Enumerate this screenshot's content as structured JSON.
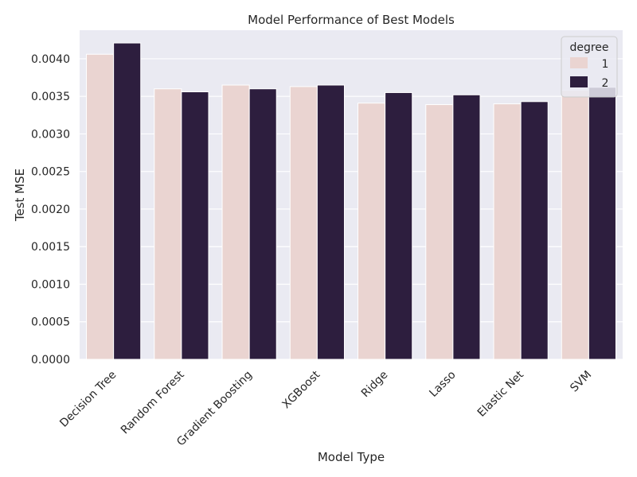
{
  "chart_data": {
    "type": "bar",
    "title": "Model Performance of Best Models",
    "xlabel": "Model Type",
    "ylabel": "Test MSE",
    "categories": [
      "Decision Tree",
      "Random Forest",
      "Gradient Boosting",
      "XGBoost",
      "Ridge",
      "Lasso",
      "Elastic Net",
      "SVM"
    ],
    "series": [
      {
        "name": "1",
        "color": "#ead4d1",
        "values": [
          0.00406,
          0.0036,
          0.00365,
          0.00363,
          0.00341,
          0.00339,
          0.0034,
          0.00358
        ]
      },
      {
        "name": "2",
        "color": "#2d1e3e",
        "values": [
          0.00421,
          0.00356,
          0.0036,
          0.00365,
          0.00355,
          0.00352,
          0.00343,
          0.00362
        ]
      }
    ],
    "legend": {
      "title": "degree",
      "placement": "top-right"
    },
    "ylim": [
      0,
      0.00438
    ],
    "yticks": [
      "0.0000",
      "0.0005",
      "0.0010",
      "0.0015",
      "0.0020",
      "0.0025",
      "0.0030",
      "0.0035",
      "0.0040"
    ],
    "grid": true,
    "background": "#eaeaf2"
  }
}
